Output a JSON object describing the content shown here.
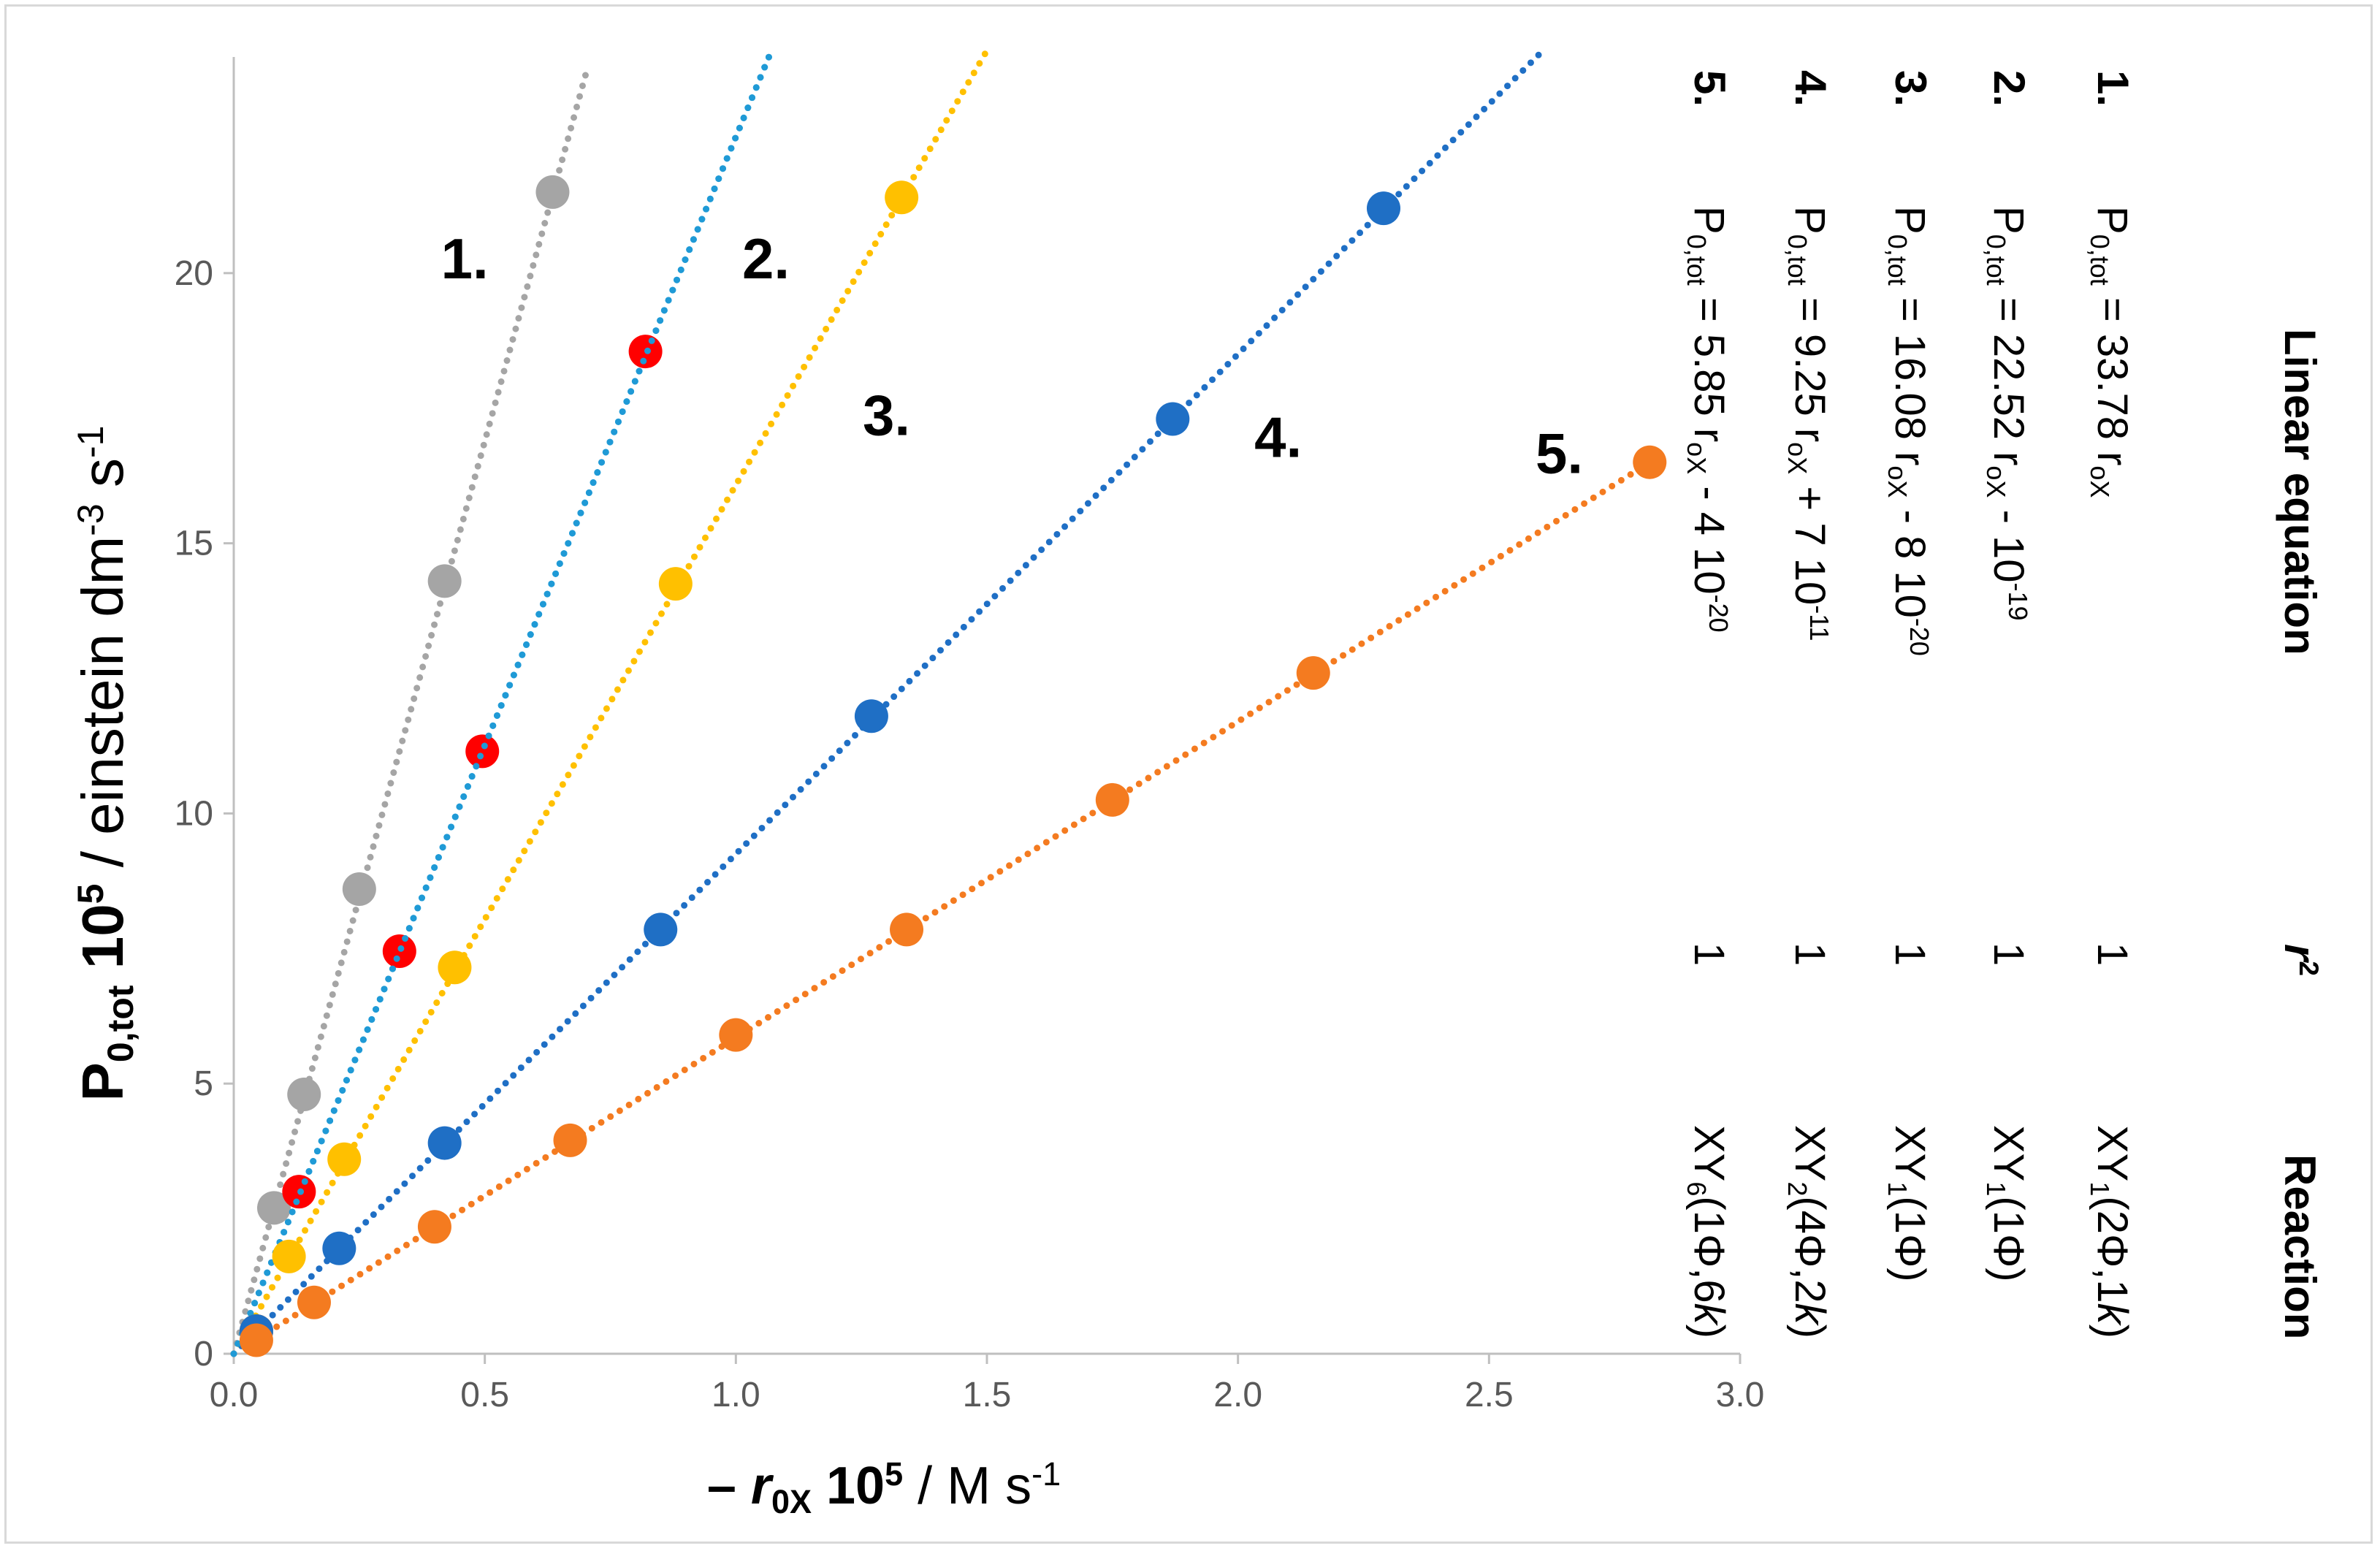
{
  "chart_data": {
    "type": "scatter",
    "xlim": [
      0,
      3.0
    ],
    "ylim": [
      0,
      24
    ],
    "x_ticks": [
      0.0,
      0.5,
      1.0,
      1.5,
      2.0,
      2.5,
      3.0
    ],
    "x_tick_labels": [
      "0.0",
      "0.5",
      "1.0",
      "1.5",
      "2.0",
      "2.5",
      "3.0"
    ],
    "y_ticks": [
      0,
      5,
      10,
      15,
      20
    ],
    "y_tick_labels": [
      "0",
      "5",
      "10",
      "15",
      "20"
    ],
    "ylabel": {
      "main": "P",
      "main_sub": "0,tot",
      "scale": "10",
      "scale_sup": "5",
      "unit": " / einstein dm",
      "unit_sup1": "-3",
      "unit_mid": " s",
      "unit_sup2": "-1"
    },
    "xlabel": {
      "prefix": "– ",
      "var": "r",
      "var_sub": "0X",
      "scale": "10",
      "scale_sup": "5",
      "unit": " / M s",
      "unit_sup": "-1"
    },
    "series": [
      {
        "label": "1.",
        "color": "#a5a5a5",
        "slope": 33.78,
        "fit_x": [
          0.0,
          0.705
        ],
        "label_pos": [
          0.46,
          19.9
        ],
        "x": [
          0.045,
          0.08,
          0.14,
          0.25,
          0.42,
          0.635
        ],
        "y": [
          0.42,
          2.7,
          4.8,
          8.6,
          14.3,
          21.5
        ]
      },
      {
        "label": "2.",
        "color": "#1f9ad6",
        "marker_color": "#ff0000",
        "slope": 22.52,
        "fit_x": [
          0.0,
          1.07
        ],
        "label_pos": [
          1.06,
          19.9
        ],
        "x": [
          0.045,
          0.13,
          0.33,
          0.495,
          0.82
        ],
        "y": [
          0.42,
          3.0,
          7.45,
          11.15,
          18.55
        ]
      },
      {
        "label": "3.",
        "color": "#ffc000",
        "slope": 16.08,
        "fit_x": [
          0.0,
          1.5
        ],
        "label_pos": [
          1.3,
          17.0
        ],
        "x": [
          0.045,
          0.11,
          0.22,
          0.44,
          0.88,
          1.33
        ],
        "y": [
          0.42,
          1.8,
          3.6,
          7.15,
          14.25,
          21.4
        ]
      },
      {
        "label": "4.",
        "color": "#1f6fc5",
        "slope": 9.25,
        "fit_x": [
          0.0,
          2.6
        ],
        "label_pos": [
          2.08,
          16.6
        ],
        "x": [
          0.045,
          0.21,
          0.42,
          0.85,
          1.27,
          1.87,
          2.29
        ],
        "y": [
          0.42,
          1.95,
          3.9,
          7.85,
          11.8,
          17.3,
          21.2
        ]
      },
      {
        "label": "5.",
        "color": "#f47b20",
        "slope": 5.85,
        "fit_x": [
          0.03,
          2.83
        ],
        "label_pos": [
          2.64,
          16.3
        ],
        "x": [
          0.045,
          0.16,
          0.4,
          0.67,
          1.0,
          1.34,
          1.75,
          2.15,
          2.82
        ],
        "y": [
          0.25,
          0.95,
          2.35,
          3.95,
          5.9,
          7.85,
          10.25,
          12.6,
          16.5
        ]
      }
    ],
    "legend_table": {
      "headers": {
        "equation": "Linear equation",
        "r2": "r",
        "r2_sup": "2",
        "reaction": "Reaction"
      },
      "rows": [
        {
          "num": "1.",
          "eq": [
            {
              "t": "P"
            },
            {
              "t": "0,tot",
              "s": "sub"
            },
            {
              "t": " = 33.78 r"
            },
            {
              "t": "oX",
              "s": "sub"
            }
          ],
          "r2": "1",
          "reaction": [
            {
              "t": "XY"
            },
            {
              "t": "1",
              "s": "sub"
            },
            {
              "t": "(2Φ,1"
            },
            {
              "t": "k",
              "s": "it"
            },
            {
              "t": ")"
            }
          ]
        },
        {
          "num": "2.",
          "eq": [
            {
              "t": "P"
            },
            {
              "t": "0,tot",
              "s": "sub"
            },
            {
              "t": " = 22.52 r"
            },
            {
              "t": "oX",
              "s": "sub"
            },
            {
              "t": " - 10"
            },
            {
              "t": "-19",
              "s": "sup"
            }
          ],
          "r2": "1",
          "reaction": [
            {
              "t": "XY"
            },
            {
              "t": "1",
              "s": "sub"
            },
            {
              "t": "(1Φ)"
            }
          ]
        },
        {
          "num": "3.",
          "eq": [
            {
              "t": "P"
            },
            {
              "t": "0,tot",
              "s": "sub"
            },
            {
              "t": " = 16.08 r"
            },
            {
              "t": "oX",
              "s": "sub"
            },
            {
              "t": " - 8 10"
            },
            {
              "t": "-20",
              "s": "sup"
            }
          ],
          "r2": "1",
          "reaction": [
            {
              "t": "XY"
            },
            {
              "t": "1",
              "s": "sub"
            },
            {
              "t": "(1Φ)"
            }
          ]
        },
        {
          "num": "4.",
          "eq": [
            {
              "t": "P"
            },
            {
              "t": "0,tot",
              "s": "sub"
            },
            {
              "t": " = 9.25 r"
            },
            {
              "t": "oX",
              "s": "sub"
            },
            {
              "t": " + 7 10"
            },
            {
              "t": "-11",
              "s": "sup"
            }
          ],
          "r2": "1",
          "reaction": [
            {
              "t": "XY"
            },
            {
              "t": "2",
              "s": "sub"
            },
            {
              "t": "(4Φ,2"
            },
            {
              "t": "k",
              "s": "it"
            },
            {
              "t": ")"
            }
          ]
        },
        {
          "num": "5.",
          "eq": [
            {
              "t": "P"
            },
            {
              "t": "0,tot",
              "s": "sub"
            },
            {
              "t": " = 5.85 r"
            },
            {
              "t": "oX",
              "s": "sub"
            },
            {
              "t": " - 4 10"
            },
            {
              "t": "-20",
              "s": "sup"
            }
          ],
          "r2": "1",
          "reaction": [
            {
              "t": "XY"
            },
            {
              "t": "6",
              "s": "sub"
            },
            {
              "t": "(1Φ,6"
            },
            {
              "t": "k",
              "s": "it"
            },
            {
              "t": ")"
            }
          ]
        }
      ]
    }
  }
}
